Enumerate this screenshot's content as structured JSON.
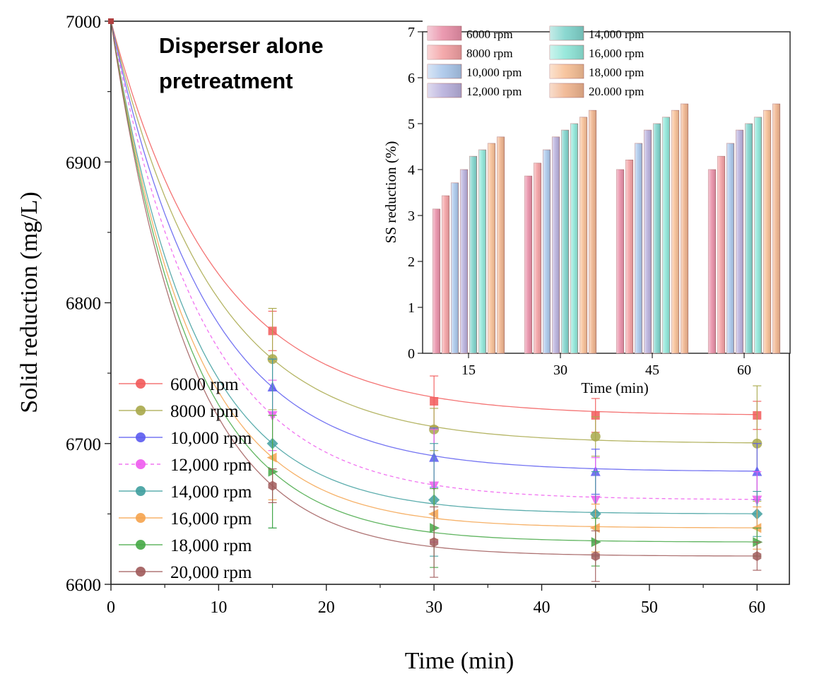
{
  "chart_data": [
    {
      "type": "scatter",
      "title": "Disperser alone pretreatment",
      "xlabel": "Time (min)",
      "ylabel": "Solid reduction (mg/L)",
      "xlim": [
        0,
        63
      ],
      "ylim": [
        6600,
        7000
      ],
      "xticks": [
        "0",
        "10",
        "20",
        "30",
        "40",
        "50",
        "60"
      ],
      "yticks": [
        "6600",
        "6700",
        "6800",
        "6900",
        "7000"
      ],
      "x": [
        0,
        15,
        30,
        45,
        60
      ],
      "legend_position": "lower-left",
      "series": [
        {
          "name": "6000 rpm",
          "color": "#f25a5a",
          "marker": "square",
          "values": [
            7000,
            6780,
            6730,
            6720,
            6720
          ],
          "error": [
            0,
            14,
            18,
            12,
            10
          ]
        },
        {
          "name": "8000 rpm",
          "color": "#a8a84a",
          "marker": "circle",
          "values": [
            7000,
            6760,
            6710,
            6705,
            6700
          ],
          "error": [
            0,
            36,
            15,
            14,
            41
          ]
        },
        {
          "name": "10,000 rpm",
          "color": "#5b5bf0",
          "marker": "triangle-up",
          "values": [
            7000,
            6740,
            6690,
            6680,
            6680
          ],
          "error": [
            0,
            20,
            21,
            16,
            20
          ]
        },
        {
          "name": "12,000 rpm",
          "color": "#ee5aee",
          "marker": "triangle-down",
          "dashed": true,
          "values": [
            7000,
            6720,
            6670,
            6660,
            6660
          ],
          "error": [
            0,
            25,
            40,
            30,
            20
          ]
        },
        {
          "name": "14,000 rpm",
          "color": "#3f9f9f",
          "marker": "diamond",
          "values": [
            7000,
            6700,
            6660,
            6650,
            6650
          ],
          "error": [
            0,
            60,
            40,
            30,
            16
          ]
        },
        {
          "name": "16,000 rpm",
          "color": "#f5a34d",
          "marker": "triangle-left",
          "values": [
            7000,
            6690,
            6650,
            6640,
            6640
          ],
          "error": [
            0,
            30,
            18,
            17,
            15
          ]
        },
        {
          "name": "18,000 rpm",
          "color": "#45a845",
          "marker": "triangle-right",
          "values": [
            7000,
            6680,
            6640,
            6630,
            6630
          ],
          "error": [
            0,
            40,
            28,
            17,
            10
          ]
        },
        {
          "name": "20,000 rpm",
          "color": "#a05a5a",
          "marker": "hexagon",
          "values": [
            7000,
            6670,
            6630,
            6620,
            6620
          ],
          "error": [
            0,
            12,
            25,
            18,
            10
          ]
        }
      ]
    },
    {
      "type": "bar",
      "inset": true,
      "xlabel": "Time (min)",
      "ylabel": "SS reduction (%)",
      "ylim": [
        0,
        7
      ],
      "yticks": [
        "0",
        "1",
        "2",
        "3",
        "4",
        "5",
        "6",
        "7"
      ],
      "categories": [
        "15",
        "30",
        "45",
        "60"
      ],
      "legend_position": "top-left",
      "series": [
        {
          "name": "6000 rpm",
          "color": "#e98fa8",
          "values": [
            3.14,
            3.86,
            4.0,
            4.0
          ]
        },
        {
          "name": "8000 rpm",
          "color": "#f3a0a3",
          "values": [
            3.43,
            4.14,
            4.21,
            4.29
          ]
        },
        {
          "name": "10,000 rpm",
          "color": "#a9c6ea",
          "values": [
            3.71,
            4.43,
            4.57,
            4.57
          ]
        },
        {
          "name": "12,000 rpm",
          "color": "#b8b0dc",
          "values": [
            4.0,
            4.71,
            4.86,
            4.86
          ]
        },
        {
          "name": "14,000 rpm",
          "color": "#7fd4cc",
          "values": [
            4.29,
            4.86,
            5.0,
            5.0
          ]
        },
        {
          "name": "16,000 rpm",
          "color": "#8ee6d8",
          "values": [
            4.43,
            5.0,
            5.14,
            5.14
          ]
        },
        {
          "name": "18,000 rpm",
          "color": "#f7bf95",
          "values": [
            4.57,
            5.14,
            5.29,
            5.29
          ]
        },
        {
          "name": "20.000 rpm",
          "color": "#f0b48e",
          "values": [
            4.71,
            5.29,
            5.43,
            5.43
          ]
        }
      ]
    }
  ]
}
